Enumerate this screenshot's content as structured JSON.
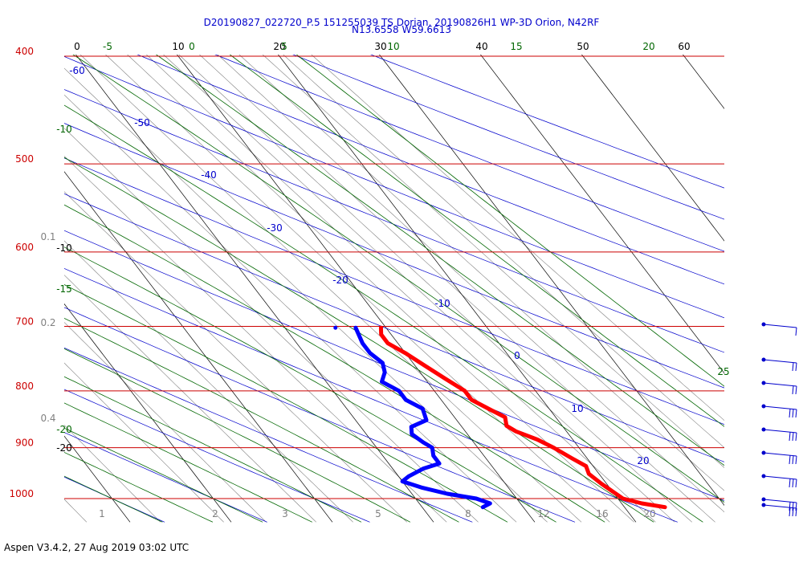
{
  "header": {
    "title_line1": "D20190827_022720_P.5 151255039 TS Dorian, 20190826H1 WP-3D Orion, N42RF",
    "title_line2": "N13.6558 W59.6613"
  },
  "footer": {
    "text": "Aspen V3.4.2, 27 Aug 2019  03:02 UTC"
  },
  "colors": {
    "isobar": "#cc0000",
    "isotherm": "#000000",
    "dry_adiabat": "#0000cc",
    "moist_adiabat": "#006600",
    "mixing_ratio": "#808080",
    "temperature_profile": "#ff0000",
    "dewpoint_profile": "#0000ff",
    "wind_barb": "#0000cc"
  },
  "chart_data": {
    "type": "skew-t",
    "title": "D20190827_022720_P.5 151255039 TS Dorian, 20190826H1 WP-3D Orion, N42RF",
    "subtitle": "N13.6558 W59.6613",
    "pressure_axis": {
      "range_hpa": [
        1030,
        400
      ],
      "log_scale": true,
      "labels": [
        "400",
        "500",
        "600",
        "700",
        "800",
        "900",
        "1000"
      ],
      "values": [
        400,
        500,
        600,
        700,
        800,
        900,
        1000
      ]
    },
    "isotherms": {
      "values": [
        -60,
        -50,
        -40,
        -30,
        -20,
        -10,
        0,
        10,
        20,
        30,
        40,
        50,
        60
      ],
      "top_labels": [
        "0",
        "10",
        "20",
        "30",
        "40",
        "50",
        "60"
      ],
      "interior_labels": [
        "-60",
        "-50",
        "-40",
        "-30",
        "-20",
        "-10",
        "0",
        "10",
        "20"
      ],
      "left_labels": [
        "-10",
        "-20"
      ]
    },
    "dry_adiabat_labels": [
      "-5",
      "0",
      "5",
      "10",
      "15",
      "20",
      "25"
    ],
    "moist_adiabat_labels": [
      "-10",
      "-15",
      "-20"
    ],
    "mixing_ratio_labels": [
      "0.1",
      "0.2",
      "0.4",
      "1",
      "2",
      "3",
      "5",
      "8",
      "12",
      "16",
      "20"
    ],
    "temperature_profile": [
      {
        "p": 702,
        "t": 9.5
      },
      {
        "p": 712,
        "t": 9.0
      },
      {
        "p": 725,
        "t": 9.0
      },
      {
        "p": 740,
        "t": 10.0
      },
      {
        "p": 760,
        "t": 11.0
      },
      {
        "p": 780,
        "t": 12.0
      },
      {
        "p": 800,
        "t": 13.0
      },
      {
        "p": 815,
        "t": 13.0
      },
      {
        "p": 830,
        "t": 14.0
      },
      {
        "p": 845,
        "t": 15.0
      },
      {
        "p": 860,
        "t": 14.5
      },
      {
        "p": 870,
        "t": 15.0
      },
      {
        "p": 885,
        "t": 16.5
      },
      {
        "p": 900,
        "t": 17.5
      },
      {
        "p": 920,
        "t": 18.5
      },
      {
        "p": 935,
        "t": 19.3
      },
      {
        "p": 950,
        "t": 19.0
      },
      {
        "p": 970,
        "t": 19.5
      },
      {
        "p": 985,
        "t": 20.0
      },
      {
        "p": 1000,
        "t": 20.5
      },
      {
        "p": 1010,
        "t": 22.0
      },
      {
        "p": 1018,
        "t": 24.0
      }
    ],
    "dewpoint_profile": [
      {
        "p": 702,
        "t": 7.0
      },
      {
        "p": 725,
        "t": 6.5
      },
      {
        "p": 740,
        "t": 6.5
      },
      {
        "p": 755,
        "t": 7.0
      },
      {
        "p": 770,
        "t": 6.5
      },
      {
        "p": 785,
        "t": 5.5
      },
      {
        "p": 800,
        "t": 6.5
      },
      {
        "p": 815,
        "t": 6.5
      },
      {
        "p": 830,
        "t": 7.5
      },
      {
        "p": 850,
        "t": 7.0
      },
      {
        "p": 862,
        "t": 5.0
      },
      {
        "p": 875,
        "t": 4.5
      },
      {
        "p": 890,
        "t": 5.0
      },
      {
        "p": 900,
        "t": 5.5
      },
      {
        "p": 915,
        "t": 5.0
      },
      {
        "p": 930,
        "t": 5.0
      },
      {
        "p": 940,
        "t": 3.0
      },
      {
        "p": 955,
        "t": 1.0
      },
      {
        "p": 965,
        "t": 0.0
      },
      {
        "p": 978,
        "t": 1.5
      },
      {
        "p": 990,
        "t": 3.5
      },
      {
        "p": 1000,
        "t": 6.0
      },
      {
        "p": 1010,
        "t": 7.0
      },
      {
        "p": 1018,
        "t": 6.0
      }
    ],
    "wind_barb_levels": [
      702,
      755,
      790,
      830,
      870,
      910,
      955,
      1010,
      1018
    ],
    "grid": true
  }
}
